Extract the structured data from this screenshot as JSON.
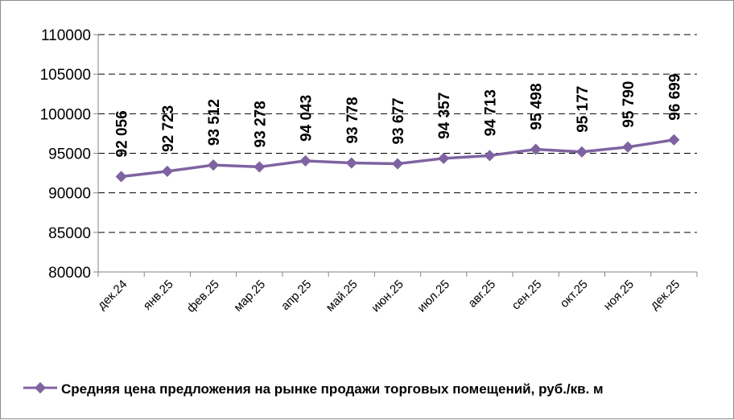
{
  "chart_data": {
    "type": "line",
    "categories": [
      "дек.24",
      "янв.25",
      "фев.25",
      "мар.25",
      "апр.25",
      "май.25",
      "июн.25",
      "июл.25",
      "авг.25",
      "сен.25",
      "окт.25",
      "ноя.25",
      "дек.25"
    ],
    "series": [
      {
        "name": "Средняя цена предложения на рынке продажи торговых помещений,  руб./кв. м",
        "values": [
          92056,
          92723,
          93512,
          93278,
          94043,
          93778,
          93677,
          94357,
          94713,
          95498,
          95177,
          95790,
          96699
        ],
        "labels": [
          "92 056",
          "92 723",
          "93 512",
          "93 278",
          "94 043",
          "93 778",
          "93 677",
          "94 357",
          "94 713",
          "95 498",
          "95 177",
          "95 790",
          "96 699"
        ],
        "color": "#7f63a1"
      }
    ],
    "yticks": [
      "80000",
      "85000",
      "90000",
      "95000",
      "100000",
      "105000",
      "110000"
    ],
    "ylim": [
      80000,
      110000
    ],
    "grid": "horizontal dashed",
    "legend": "bottom",
    "gridline_color": "#000000",
    "axis_color": "#868686"
  }
}
